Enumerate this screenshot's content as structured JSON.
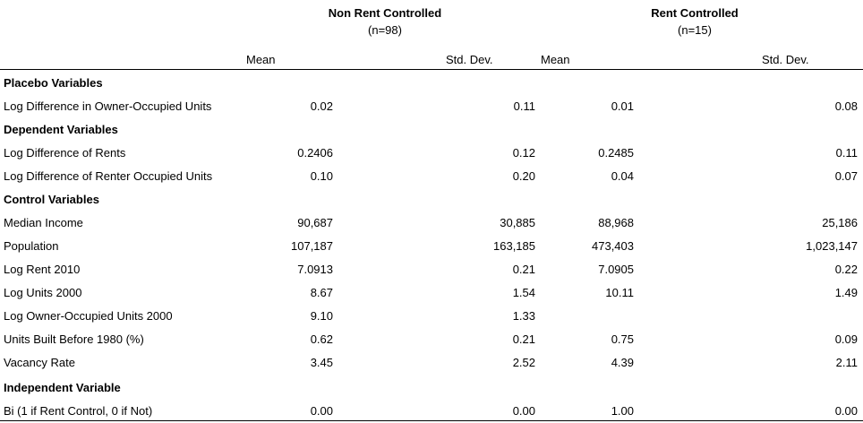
{
  "header": {
    "groups": [
      {
        "title": "Non Rent Controlled",
        "n": "(n=98)"
      },
      {
        "title": "Rent Controlled",
        "n": "(n=15)"
      }
    ],
    "columns": [
      "Mean",
      "Std. Dev.",
      "Mean",
      "Std. Dev."
    ]
  },
  "rows": [
    {
      "type": "section",
      "label": "Placebo Variables",
      "values": [
        "",
        "",
        "",
        ""
      ]
    },
    {
      "type": "data",
      "label": "Log Difference in Owner-Occupied Units",
      "values": [
        "0.02",
        "0.11",
        "0.01",
        "0.08"
      ]
    },
    {
      "type": "section",
      "label": "Dependent Variables",
      "values": [
        "",
        "",
        "",
        ""
      ]
    },
    {
      "type": "data",
      "label": "Log Difference of Rents",
      "values": [
        "0.2406",
        "0.12",
        "0.2485",
        "0.11"
      ]
    },
    {
      "type": "data",
      "label": "Log Difference of Renter Occupied Units",
      "values": [
        "0.10",
        "0.20",
        "0.04",
        "0.07"
      ]
    },
    {
      "type": "section",
      "label": "Control Variables",
      "values": [
        "",
        "",
        "",
        ""
      ]
    },
    {
      "type": "data",
      "label": "Median Income",
      "values": [
        "90,687",
        "30,885",
        "88,968",
        "25,186"
      ]
    },
    {
      "type": "data",
      "label": "Population",
      "values": [
        "107,187",
        "163,185",
        "473,403",
        "1,023,147"
      ]
    },
    {
      "type": "data",
      "label": "Log Rent 2010",
      "values": [
        "7.0913",
        "0.21",
        "7.0905",
        "0.22"
      ]
    },
    {
      "type": "data",
      "label": "Log Units 2000",
      "values": [
        "8.67",
        "1.54",
        "10.11",
        "1.49"
      ]
    },
    {
      "type": "data",
      "label": "Log Owner-Occupied Units 2000",
      "values": [
        "9.10",
        "1.33",
        "",
        ""
      ]
    },
    {
      "type": "data",
      "label": "Units Built Before 1980 (%)",
      "values": [
        "0.62",
        "0.21",
        "0.75",
        "0.09"
      ]
    },
    {
      "type": "data",
      "label": "Vacancy Rate",
      "values": [
        "3.45",
        "2.52",
        "4.39",
        "2.11"
      ]
    },
    {
      "type": "section",
      "label": "Independent Variable",
      "values": [
        "",
        "",
        "",
        ""
      ]
    },
    {
      "type": "data",
      "label": "Bi (1 if Rent Control, 0 if Not)",
      "values": [
        "0.00",
        "0.00",
        "1.00",
        "0.00"
      ]
    }
  ]
}
